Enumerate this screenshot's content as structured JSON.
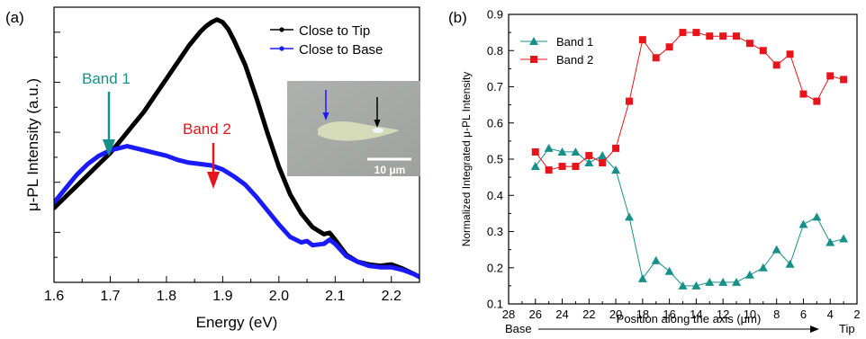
{
  "chart_data": [
    {
      "panel_label": "(a)",
      "type": "line",
      "xlabel": "Energy (eV)",
      "ylabel": "μ-PL Intensity (a.u.)",
      "xlim": [
        1.6,
        2.25
      ],
      "ylim": [
        0,
        1.0
      ],
      "xticks": [
        "1.6",
        "1.7",
        "1.8",
        "1.9",
        "2.0",
        "2.1",
        "2.2"
      ],
      "legend_position": "top-right",
      "series": [
        {
          "name": "Close to Tip",
          "color": "#000000",
          "x": [
            1.6,
            1.62,
            1.64,
            1.66,
            1.68,
            1.7,
            1.72,
            1.74,
            1.76,
            1.78,
            1.8,
            1.82,
            1.84,
            1.86,
            1.87,
            1.88,
            1.89,
            1.9,
            1.91,
            1.92,
            1.94,
            1.96,
            1.98,
            2.0,
            2.02,
            2.04,
            2.06,
            2.08,
            2.09,
            2.1,
            2.12,
            2.14,
            2.16,
            2.18,
            2.2,
            2.22,
            2.24,
            2.25
          ],
          "y": [
            0.27,
            0.31,
            0.35,
            0.39,
            0.43,
            0.47,
            0.52,
            0.57,
            0.62,
            0.68,
            0.74,
            0.8,
            0.86,
            0.91,
            0.93,
            0.945,
            0.955,
            0.945,
            0.92,
            0.88,
            0.79,
            0.67,
            0.54,
            0.42,
            0.32,
            0.25,
            0.2,
            0.175,
            0.18,
            0.155,
            0.1,
            0.075,
            0.065,
            0.06,
            0.065,
            0.05,
            0.03,
            0.02
          ]
        },
        {
          "name": "Close to Base",
          "color": "#1a1aff",
          "x": [
            1.6,
            1.62,
            1.64,
            1.66,
            1.68,
            1.7,
            1.72,
            1.73,
            1.74,
            1.76,
            1.78,
            1.8,
            1.82,
            1.84,
            1.86,
            1.88,
            1.9,
            1.92,
            1.94,
            1.96,
            1.98,
            2.0,
            2.02,
            2.04,
            2.05,
            2.06,
            2.08,
            2.09,
            2.1,
            2.12,
            2.14,
            2.16,
            2.18,
            2.2,
            2.22,
            2.24,
            2.25
          ],
          "y": [
            0.29,
            0.34,
            0.39,
            0.43,
            0.46,
            0.48,
            0.49,
            0.495,
            0.49,
            0.48,
            0.47,
            0.46,
            0.445,
            0.435,
            0.43,
            0.425,
            0.41,
            0.385,
            0.355,
            0.31,
            0.26,
            0.21,
            0.165,
            0.145,
            0.15,
            0.135,
            0.14,
            0.155,
            0.14,
            0.095,
            0.075,
            0.06,
            0.055,
            0.055,
            0.045,
            0.03,
            0.02
          ]
        }
      ],
      "annotations": [
        {
          "text": "Band 1",
          "color": "#17908a",
          "x": 1.7
        },
        {
          "text": "Band 2",
          "color": "#e8141b",
          "x": 1.885
        }
      ],
      "inset": {
        "scale_label": "10 μm"
      }
    },
    {
      "panel_label": "(b)",
      "type": "line",
      "xlabel": "Position along the axis (μm)",
      "ylabel": "Normalized Integrated μ-PL Intensity",
      "xlim": [
        28,
        2
      ],
      "ylim": [
        0.1,
        0.9
      ],
      "xticks": [
        28,
        26,
        24,
        22,
        20,
        18,
        16,
        14,
        12,
        10,
        8,
        6,
        4,
        2
      ],
      "yticks": [
        0.1,
        0.2,
        0.3,
        0.4,
        0.5,
        0.6,
        0.7,
        0.8,
        0.9
      ],
      "base_label": "Base",
      "tip_label": "Tip",
      "legend_position": "top-left",
      "series": [
        {
          "name": "Band 1",
          "color": "#17908a",
          "marker": "triangle",
          "x": [
            26,
            25,
            24,
            23,
            22,
            21,
            20,
            19,
            18,
            17,
            16,
            15,
            14,
            13,
            12,
            11,
            10,
            9,
            8,
            7,
            6,
            5,
            4,
            3
          ],
          "y": [
            0.48,
            0.53,
            0.52,
            0.52,
            0.49,
            0.51,
            0.47,
            0.34,
            0.17,
            0.22,
            0.19,
            0.15,
            0.15,
            0.16,
            0.16,
            0.16,
            0.18,
            0.2,
            0.25,
            0.21,
            0.32,
            0.34,
            0.27,
            0.28
          ]
        },
        {
          "name": "Band 2",
          "color": "#e8141b",
          "marker": "square",
          "x": [
            26,
            25,
            24,
            23,
            22,
            21,
            20,
            19,
            18,
            17,
            16,
            15,
            14,
            13,
            12,
            11,
            10,
            9,
            8,
            7,
            6,
            5,
            4,
            3
          ],
          "y": [
            0.52,
            0.47,
            0.48,
            0.48,
            0.51,
            0.49,
            0.53,
            0.66,
            0.83,
            0.78,
            0.81,
            0.85,
            0.85,
            0.84,
            0.84,
            0.84,
            0.82,
            0.8,
            0.76,
            0.79,
            0.68,
            0.66,
            0.73,
            0.72
          ]
        }
      ]
    }
  ]
}
